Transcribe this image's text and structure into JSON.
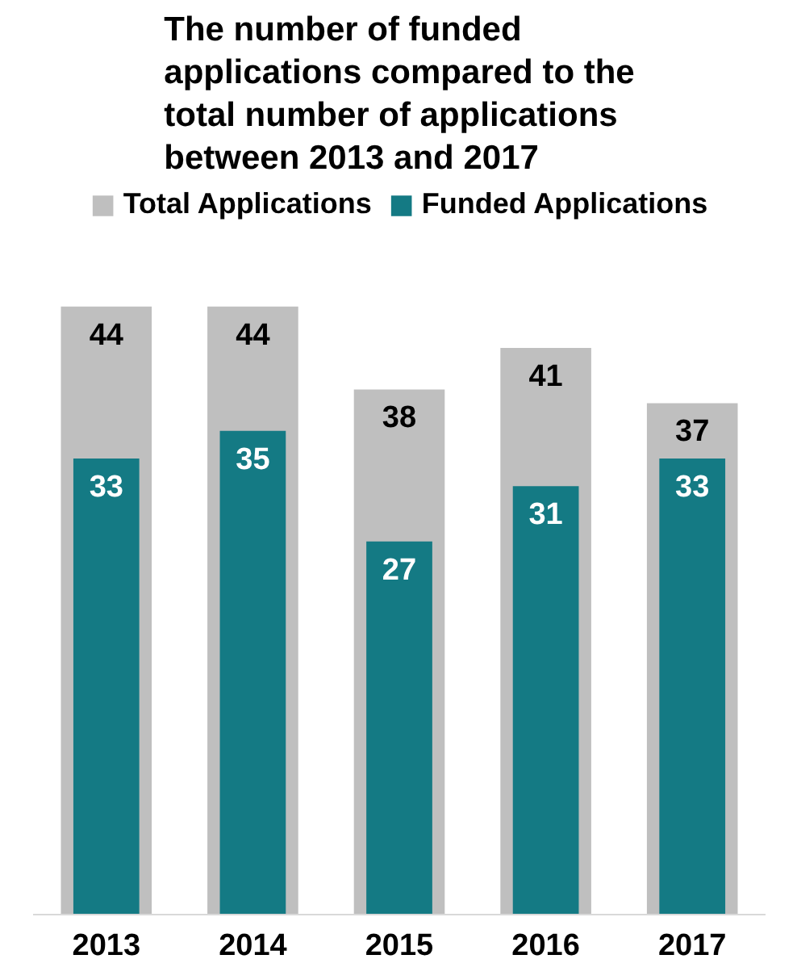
{
  "chart_data": {
    "type": "bar",
    "title": "The number of funded applications compared to the total number of applications between 2013 and 2017",
    "categories": [
      "2013",
      "2014",
      "2015",
      "2016",
      "2017"
    ],
    "series": [
      {
        "name": "Total Applications",
        "color": "#bfbfbf",
        "values": [
          44,
          44,
          38,
          41,
          37
        ]
      },
      {
        "name": "Funded Applications",
        "color": "#147a84",
        "values": [
          33,
          35,
          27,
          31,
          33
        ]
      }
    ],
    "data_labels": true,
    "legend": "top",
    "grid": false,
    "tick_labels": "x"
  }
}
